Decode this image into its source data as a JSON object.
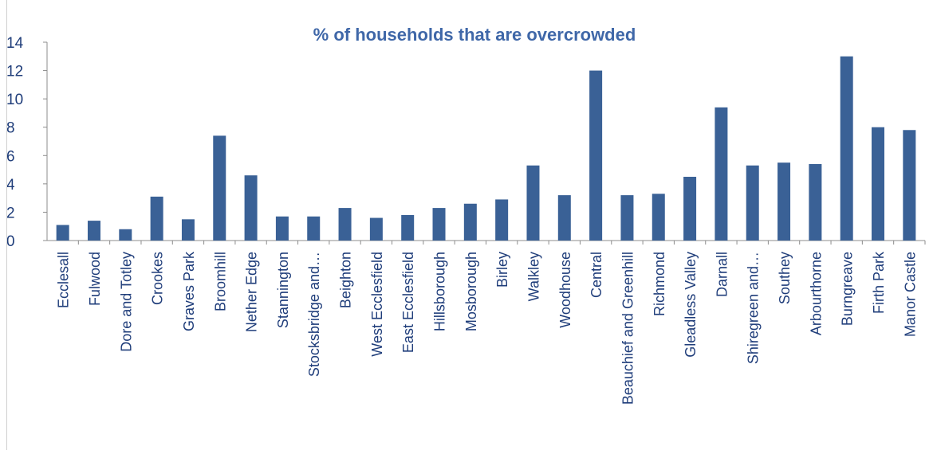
{
  "chart_data": {
    "type": "bar",
    "title": "% of households that are overcrowded",
    "xlabel": "",
    "ylabel": "",
    "ylim": [
      0,
      14
    ],
    "yticks": [
      0,
      2,
      4,
      6,
      8,
      10,
      12,
      14
    ],
    "grid": false,
    "legend": "none",
    "bar_color": "#3A6196",
    "title_color": "#3F67A8",
    "tick_color": "#1F3D7A",
    "categories": [
      "Ecclesall",
      "Fulwood",
      "Dore and Totley",
      "Crookes",
      "Graves Park",
      "Broomhill",
      "Nether Edge",
      "Stannington",
      "Stocksbridge and…",
      "Beighton",
      "West Ecclesfield",
      "East Ecclesfield",
      "Hillsborough",
      "Mosborough",
      "Birley",
      "Walkley",
      "Woodhouse",
      "Central",
      "Beauchief and Greenhill",
      "Richmond",
      "Gleadless Valley",
      "Darnall",
      "Shiregreen and…",
      "Southey",
      "Arbourthorne",
      "Burngreave",
      "Firth Park",
      "Manor Castle"
    ],
    "values": [
      1.1,
      1.4,
      0.8,
      3.1,
      1.5,
      7.4,
      4.6,
      1.7,
      1.7,
      2.3,
      1.6,
      1.8,
      2.3,
      2.6,
      2.9,
      5.3,
      3.2,
      12.0,
      3.2,
      3.3,
      4.5,
      9.4,
      5.3,
      5.5,
      5.4,
      13.0,
      8.0,
      7.8
    ]
  }
}
